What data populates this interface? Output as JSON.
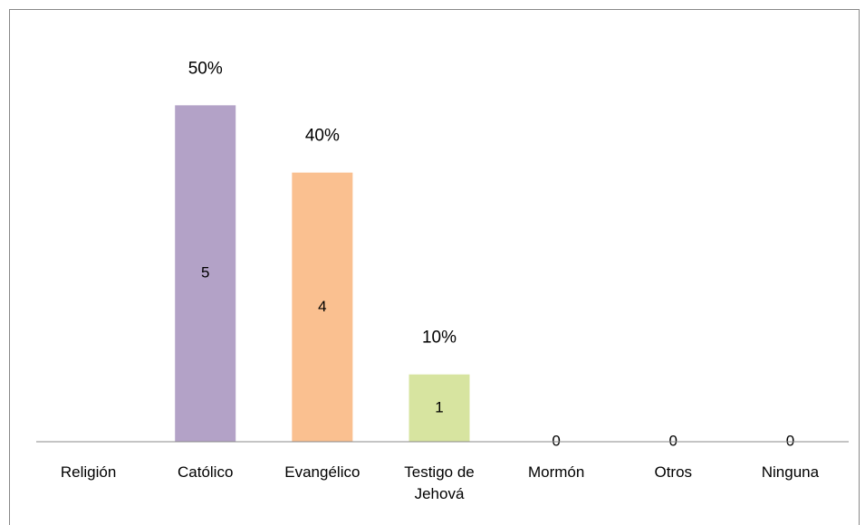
{
  "chart_data": {
    "type": "bar",
    "categories": [
      "Religión",
      "Católico",
      "Evangélico",
      "Testigo de Jehová",
      "Mormón",
      "Otros",
      "Ninguna"
    ],
    "values": [
      null,
      5,
      4,
      1,
      0,
      0,
      0
    ],
    "colors": [
      null,
      "#b3a2c7",
      "#fac090",
      "#d7e4a0",
      null,
      null,
      null
    ],
    "percent_values": [
      null,
      50,
      40,
      10,
      null,
      null,
      null
    ],
    "percent_labels": [
      null,
      "50%",
      "40%",
      "10%",
      null,
      null,
      null
    ],
    "ylim": [
      0,
      6
    ]
  }
}
